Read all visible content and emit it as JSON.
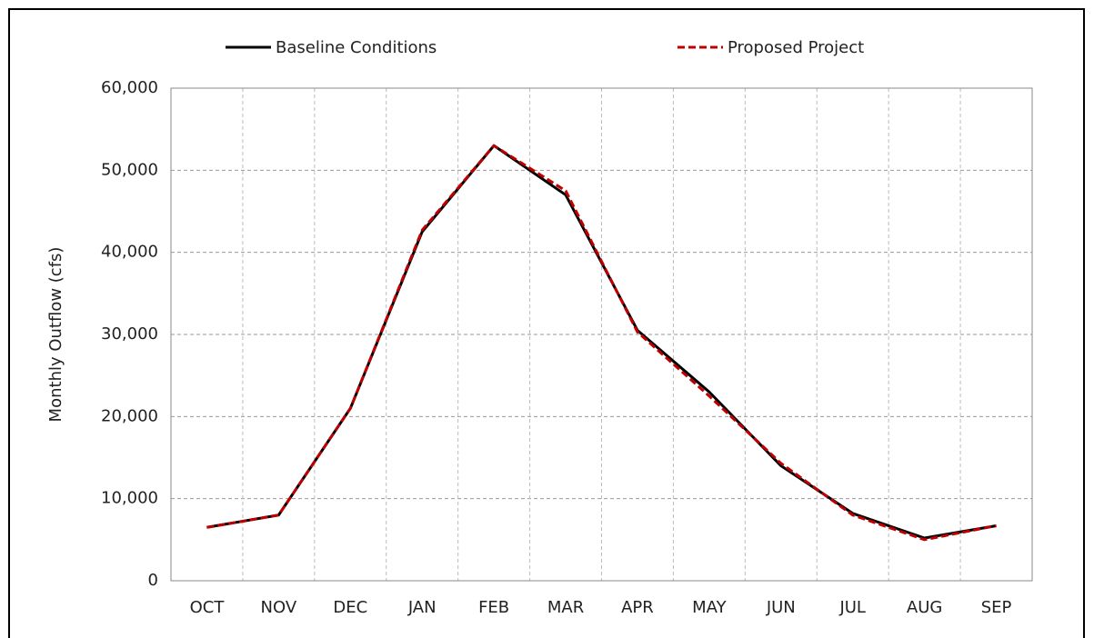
{
  "chart_data": {
    "type": "line",
    "y_axis_label": "Monthly Outflow (cfs)",
    "categories": [
      "OCT",
      "NOV",
      "DEC",
      "JAN",
      "FEB",
      "MAR",
      "APR",
      "MAY",
      "JUN",
      "JUL",
      "AUG",
      "SEP"
    ],
    "series": [
      {
        "name": "Baseline Conditions",
        "color": "#000000",
        "dash": "solid",
        "values": [
          6500,
          8000,
          21000,
          42500,
          53000,
          47000,
          30500,
          23000,
          14000,
          8200,
          5200,
          6700
        ]
      },
      {
        "name": "Proposed Project",
        "color": "#c00000",
        "dash": "dashed",
        "values": [
          6500,
          8000,
          21000,
          42700,
          53000,
          47500,
          30300,
          22500,
          14300,
          8000,
          5000,
          6700
        ]
      }
    ],
    "ylim": [
      0,
      60000
    ],
    "yticks": [
      0,
      {
        "value": 10000,
        "label": "10,000"
      },
      {
        "value": 20000,
        "label": "20,000"
      },
      {
        "value": 30000,
        "label": "30,000"
      },
      {
        "value": 40000,
        "label": "40,000"
      },
      {
        "value": 50000,
        "label": "50,000"
      },
      {
        "value": 60000,
        "label": "60,000"
      }
    ],
    "grid": true
  }
}
